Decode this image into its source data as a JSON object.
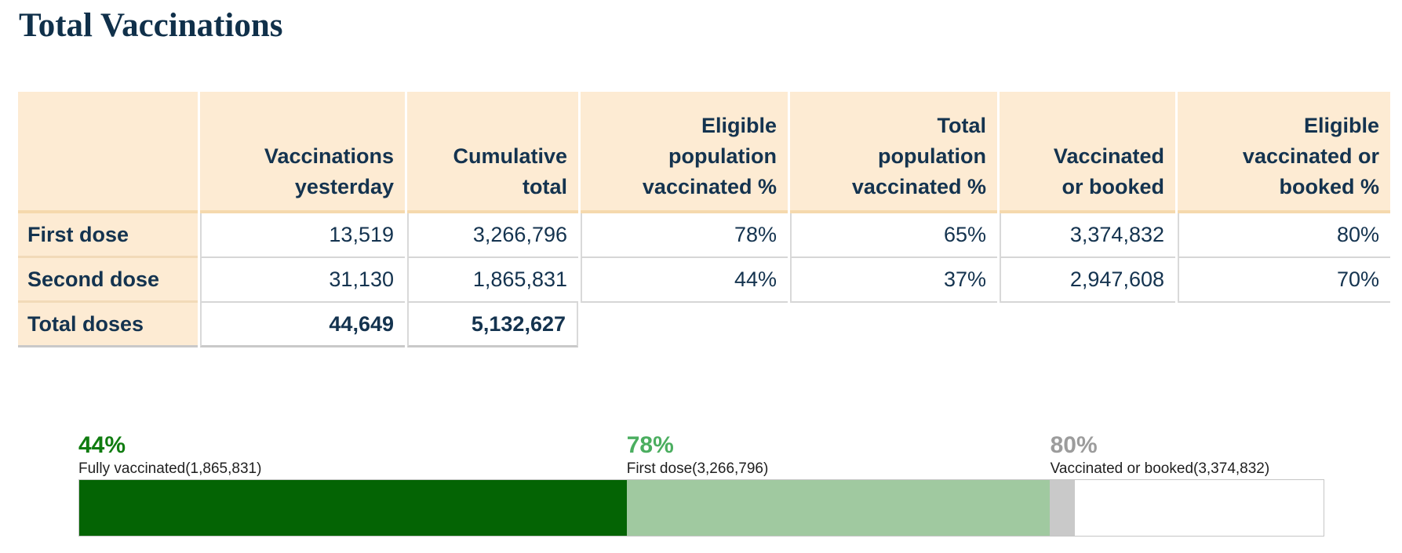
{
  "page": {
    "title": "Total Vaccinations"
  },
  "colors": {
    "title_text": "#10304a",
    "table_text": "#14334f",
    "header_bg": "#fdebd3",
    "header_border": "#f5d9ad",
    "grid_line": "#d6d6d6",
    "bar_dark_green": "#046404",
    "bar_light_green": "#a0c9a0",
    "bar_gray": "#c9c9c9",
    "label_green_dark": "#107c10",
    "label_green_medium": "#4bae60",
    "label_gray": "#9c9c9c"
  },
  "table": {
    "columns": [
      "",
      "Vaccinations\nyesterday",
      "Cumulative\ntotal",
      "Eligible\npopulation\nvaccinated %",
      "Total\npopulation\nvaccinated %",
      "Vaccinated\nor booked",
      "Eligible\nvaccinated or\nbooked %"
    ],
    "rows": [
      {
        "label": "First dose",
        "values": [
          "13,519",
          "3,266,796",
          "78%",
          "65%",
          "3,374,832",
          "80%"
        ]
      },
      {
        "label": "Second dose",
        "values": [
          "31,130",
          "1,865,831",
          "44%",
          "37%",
          "2,947,608",
          "70%"
        ]
      },
      {
        "label": "Total doses",
        "values": [
          "44,649",
          "5,132,627",
          "",
          "",
          "",
          ""
        ]
      }
    ]
  },
  "chart_data": [
    {
      "type": "table",
      "title": "Total Vaccinations",
      "categories": [
        "First dose",
        "Second dose",
        "Total doses"
      ],
      "series": [
        {
          "name": "Vaccinations yesterday",
          "values": [
            13519,
            31130,
            44649
          ]
        },
        {
          "name": "Cumulative total",
          "values": [
            3266796,
            1865831,
            5132627
          ]
        },
        {
          "name": "Eligible population vaccinated %",
          "values": [
            78,
            44,
            null
          ]
        },
        {
          "name": "Total population vaccinated %",
          "values": [
            65,
            37,
            null
          ]
        },
        {
          "name": "Vaccinated or booked",
          "values": [
            3374832,
            2947608,
            null
          ]
        },
        {
          "name": "Eligible vaccinated or booked %",
          "values": [
            80,
            70,
            null
          ]
        }
      ]
    },
    {
      "type": "bar",
      "subtype": "stacked-progress",
      "xlim": [
        0,
        100
      ],
      "grid": false,
      "segments": [
        {
          "name": "Fully vaccinated",
          "count": 1865831,
          "cumulative_percent": 44,
          "color": "#046404"
        },
        {
          "name": "First dose",
          "count": 3266796,
          "cumulative_percent": 78,
          "color": "#a0c9a0"
        },
        {
          "name": "Vaccinated or booked",
          "count": 3374832,
          "cumulative_percent": 80,
          "color": "#c9c9c9"
        }
      ]
    }
  ],
  "bar_labels": [
    {
      "percent": "44%",
      "text": "Fully vaccinated(1,865,831)",
      "color": "#107c10",
      "anchor_percent": 0
    },
    {
      "percent": "78%",
      "text": "First dose(3,266,796)",
      "color": "#4bae60",
      "anchor_percent": 44
    },
    {
      "percent": "80%",
      "text": "Vaccinated or booked(3,374,832)",
      "color": "#9c9c9c",
      "anchor_percent": 78
    }
  ]
}
